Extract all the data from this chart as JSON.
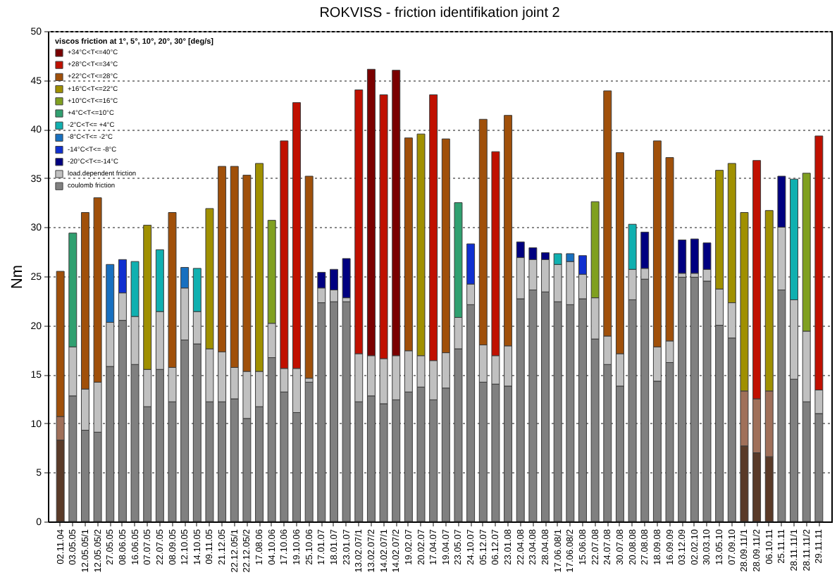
{
  "chart_data": {
    "type": "bar",
    "title": "ROKVISS - friction identifikation joint 2",
    "ylabel": "Nm",
    "legend_title": "viscos friction at 1°, 5°, 10°, 20°, 30° [deg/s]",
    "categories": [
      "02.11.04",
      "03.05.05",
      "12.05.05/1",
      "12.05.05/2",
      "27.05.05",
      "08.06.05",
      "16.06.05",
      "07.07.05",
      "22.07.05",
      "08.09.05",
      "12.10.05",
      "14.10.05",
      "09.11.05",
      "21.12.05",
      "22.12.05/1",
      "22.12.05/2",
      "17.08.06",
      "04.10.06",
      "17.10.06",
      "19.10.06",
      "25.10.06",
      "17.01.07",
      "18.01.07",
      "23.01.07",
      "13.02.07/1",
      "13.02.07/2",
      "14.02.07/1",
      "14.02.07/2",
      "19.02.07",
      "20.02.07",
      "17.04.07",
      "19.04.07",
      "23.05.07",
      "24.10.07",
      "05.12.07",
      "06.12.07",
      "23.01.08",
      "22.04.08",
      "23.04.08",
      "28.04.08",
      "17.06.08/1",
      "17.06.08/2",
      "15.06.08",
      "22.07.08",
      "24.07.08",
      "30.07.08",
      "20.08.08",
      "27.08.08",
      "18.09.08",
      "16.09.09",
      "03.12.09",
      "02.02.10",
      "30.03.10",
      "13.05.10",
      "07.09.10",
      "28.09.11/1",
      "28.09.11/2",
      "06.10.11",
      "25.11.11",
      "28.11.11/1",
      "28.11.11/2",
      "29.11.11"
    ],
    "stacked": true,
    "series": [
      {
        "name": "coulomb friction",
        "color": "#808080",
        "colors": [
          "#5a3a28",
          "#808080",
          "#808080",
          "#808080",
          "#808080",
          "#808080",
          "#808080",
          "#808080",
          "#808080",
          "#808080",
          "#808080",
          "#808080",
          "#808080",
          "#808080",
          "#808080",
          "#808080",
          "#808080",
          "#808080",
          "#808080",
          "#808080",
          "#808080",
          "#808080",
          "#808080",
          "#808080",
          "#808080",
          "#808080",
          "#808080",
          "#808080",
          "#808080",
          "#808080",
          "#808080",
          "#808080",
          "#808080",
          "#808080",
          "#808080",
          "#808080",
          "#808080",
          "#808080",
          "#808080",
          "#808080",
          "#808080",
          "#808080",
          "#808080",
          "#808080",
          "#808080",
          "#808080",
          "#808080",
          "#808080",
          "#808080",
          "#808080",
          "#808080",
          "#808080",
          "#808080",
          "#808080",
          "#808080",
          "#5a3a28",
          "#5a3a28",
          "#5a3a28",
          "#808080",
          "#808080",
          "#808080",
          "#808080"
        ],
        "values": [
          8.3,
          12.8,
          9.3,
          9.1,
          15.8,
          20.5,
          16.0,
          11.7,
          15.5,
          12.2,
          18.5,
          18.1,
          12.2,
          12.2,
          12.5,
          10.5,
          11.7,
          16.7,
          13.2,
          11.1,
          14.2,
          22.3,
          22.4,
          22.4,
          12.2,
          12.8,
          12.0,
          12.4,
          13.2,
          13.7,
          12.4,
          13.6,
          17.6,
          22.1,
          14.2,
          14.0,
          13.8,
          22.7,
          23.6,
          23.4,
          22.4,
          22.1,
          22.7,
          18.6,
          16.0,
          13.8,
          22.6,
          24.7,
          14.3,
          16.2,
          24.9,
          24.9,
          24.5,
          20.0,
          18.7,
          7.7,
          7.0,
          6.6,
          23.6,
          14.5,
          12.2,
          11.0
        ]
      },
      {
        "name": "load.dependent friction",
        "color": "#c0c0c0",
        "colors": [
          "#a0705a",
          "#c0c0c0",
          "#c0c0c0",
          "#c0c0c0",
          "#c0c0c0",
          "#c0c0c0",
          "#c0c0c0",
          "#c0c0c0",
          "#c0c0c0",
          "#c0c0c0",
          "#c0c0c0",
          "#c0c0c0",
          "#c0c0c0",
          "#c0c0c0",
          "#c0c0c0",
          "#c0c0c0",
          "#c0c0c0",
          "#c0c0c0",
          "#c0c0c0",
          "#c0c0c0",
          "#c0c0c0",
          "#c0c0c0",
          "#c0c0c0",
          "#c0c0c0",
          "#c0c0c0",
          "#c0c0c0",
          "#c0c0c0",
          "#c0c0c0",
          "#c0c0c0",
          "#c0c0c0",
          "#c0c0c0",
          "#c0c0c0",
          "#c0c0c0",
          "#c0c0c0",
          "#c0c0c0",
          "#c0c0c0",
          "#c0c0c0",
          "#c0c0c0",
          "#c0c0c0",
          "#c0c0c0",
          "#c0c0c0",
          "#c0c0c0",
          "#c0c0c0",
          "#c0c0c0",
          "#c0c0c0",
          "#c0c0c0",
          "#c0c0c0",
          "#c0c0c0",
          "#c0c0c0",
          "#c0c0c0",
          "#c0c0c0",
          "#c0c0c0",
          "#c0c0c0",
          "#c0c0c0",
          "#c0c0c0",
          "#a0705a",
          "#a0705a",
          "#a0705a",
          "#c0c0c0",
          "#c0c0c0",
          "#c0c0c0",
          "#c0c0c0"
        ],
        "values": [
          2.4,
          5.0,
          4.2,
          5.1,
          4.5,
          2.8,
          4.9,
          3.8,
          5.9,
          3.5,
          5.3,
          3.3,
          5.4,
          5.1,
          3.2,
          4.8,
          3.6,
          3.5,
          2.4,
          4.5,
          0.4,
          1.5,
          1.2,
          0.4,
          4.9,
          4.1,
          4.6,
          4.5,
          4.2,
          3.2,
          4.0,
          3.6,
          3.2,
          2.1,
          3.8,
          2.9,
          4.1,
          4.2,
          3.1,
          3.3,
          3.8,
          4.4,
          2.5,
          4.2,
          2.9,
          3.3,
          3.1,
          1.1,
          3.5,
          2.2,
          0.4,
          0.4,
          1.2,
          3.7,
          3.6,
          5.6,
          5.5,
          6.7,
          6.4,
          8.1,
          7.2,
          2.4
        ]
      },
      {
        "name": "+34°C<T<=40°C",
        "color": "#7a0000",
        "values": [
          null,
          null,
          null,
          null,
          null,
          null,
          null,
          null,
          null,
          null,
          null,
          null,
          null,
          null,
          null,
          null,
          null,
          null,
          null,
          null,
          null,
          null,
          null,
          null,
          null,
          29.2,
          null,
          29.1,
          null,
          null,
          null,
          null,
          null,
          null,
          null,
          null,
          null,
          null,
          null,
          null,
          null,
          null,
          null,
          null,
          null,
          null,
          null,
          null,
          null,
          null,
          null,
          null,
          null,
          null,
          null,
          null,
          null,
          null,
          null,
          null,
          null,
          null
        ]
      },
      {
        "name": "+28°C<T<=34°C",
        "color": "#c01000",
        "values": [
          null,
          null,
          null,
          null,
          null,
          null,
          null,
          null,
          null,
          null,
          null,
          null,
          null,
          null,
          null,
          null,
          null,
          null,
          23.2,
          27.1,
          null,
          null,
          null,
          null,
          26.9,
          null,
          26.9,
          null,
          null,
          null,
          27.1,
          null,
          null,
          null,
          null,
          20.8,
          null,
          null,
          null,
          null,
          null,
          null,
          null,
          null,
          null,
          null,
          null,
          null,
          null,
          null,
          null,
          null,
          null,
          null,
          null,
          null,
          24.3,
          null,
          null,
          null,
          null,
          25.9
        ]
      },
      {
        "name": "+22°C<T<=28°C",
        "color": "#a0500a",
        "values": [
          14.8,
          null,
          18.0,
          18.8,
          null,
          null,
          null,
          null,
          null,
          15.8,
          null,
          null,
          null,
          18.9,
          20.5,
          20.0,
          null,
          null,
          null,
          null,
          20.6,
          null,
          null,
          null,
          null,
          null,
          null,
          null,
          21.7,
          null,
          null,
          21.8,
          null,
          null,
          23.0,
          null,
          23.5,
          null,
          null,
          null,
          null,
          null,
          null,
          null,
          25.0,
          20.5,
          null,
          null,
          21.0,
          18.7,
          null,
          null,
          null,
          null,
          null,
          null,
          null,
          null,
          null,
          null,
          null,
          null
        ]
      },
      {
        "name": "+16°C<T<=22°C",
        "color": "#a09000",
        "values": [
          null,
          null,
          null,
          null,
          null,
          null,
          null,
          14.7,
          null,
          null,
          null,
          null,
          14.3,
          null,
          null,
          null,
          21.2,
          null,
          null,
          null,
          null,
          null,
          null,
          null,
          null,
          null,
          null,
          null,
          null,
          22.6,
          null,
          null,
          null,
          null,
          null,
          null,
          null,
          null,
          null,
          null,
          null,
          null,
          null,
          null,
          null,
          null,
          null,
          null,
          null,
          null,
          null,
          null,
          null,
          12.1,
          14.2,
          18.2,
          null,
          18.4,
          null,
          null,
          null,
          null
        ]
      },
      {
        "name": "+10°C<T<=16°C",
        "color": "#80a020",
        "values": [
          null,
          null,
          null,
          null,
          null,
          null,
          null,
          null,
          null,
          null,
          null,
          null,
          null,
          null,
          null,
          null,
          null,
          10.5,
          null,
          null,
          null,
          null,
          null,
          null,
          null,
          null,
          null,
          null,
          null,
          null,
          null,
          null,
          null,
          null,
          null,
          null,
          null,
          null,
          null,
          null,
          null,
          null,
          null,
          9.8,
          null,
          null,
          null,
          null,
          null,
          null,
          null,
          null,
          null,
          null,
          null,
          null,
          null,
          null,
          null,
          null,
          16.1,
          null
        ]
      },
      {
        "name": "+4°C<T<=10°C",
        "color": "#30a070",
        "values": [
          null,
          11.6,
          null,
          null,
          null,
          null,
          null,
          null,
          null,
          null,
          null,
          null,
          null,
          null,
          null,
          null,
          null,
          null,
          null,
          null,
          null,
          null,
          null,
          null,
          null,
          null,
          null,
          null,
          null,
          null,
          null,
          null,
          11.7,
          null,
          null,
          null,
          null,
          null,
          null,
          null,
          null,
          null,
          null,
          null,
          null,
          null,
          null,
          null,
          null,
          null,
          null,
          null,
          null,
          null,
          null,
          null,
          null,
          null,
          null,
          null,
          null,
          null
        ]
      },
      {
        "name": "-2°C<T<= +4°C",
        "color": "#10b0b0",
        "values": [
          null,
          null,
          null,
          null,
          null,
          null,
          5.6,
          null,
          6.3,
          null,
          null,
          4.4,
          null,
          null,
          null,
          null,
          null,
          null,
          null,
          null,
          null,
          null,
          null,
          null,
          null,
          null,
          null,
          null,
          null,
          null,
          null,
          null,
          null,
          null,
          null,
          null,
          null,
          null,
          null,
          null,
          1.1,
          null,
          null,
          null,
          null,
          null,
          4.6,
          null,
          null,
          null,
          null,
          null,
          null,
          null,
          null,
          null,
          null,
          null,
          null,
          12.3,
          null,
          null
        ]
      },
      {
        "name": "-8°C<T<= -2°C",
        "color": "#1870c0",
        "values": [
          null,
          null,
          null,
          null,
          5.9,
          null,
          null,
          null,
          null,
          null,
          2.1,
          null,
          null,
          null,
          null,
          null,
          null,
          null,
          null,
          null,
          null,
          null,
          null,
          null,
          null,
          null,
          null,
          null,
          null,
          null,
          null,
          null,
          null,
          null,
          null,
          null,
          null,
          null,
          null,
          null,
          null,
          0.8,
          null,
          null,
          null,
          null,
          null,
          null,
          null,
          null,
          null,
          null,
          null,
          null,
          null,
          null,
          null,
          null,
          null,
          null,
          null,
          null
        ]
      },
      {
        "name": "-14°C<T<= -8°C",
        "color": "#1030d0",
        "values": [
          null,
          null,
          null,
          null,
          null,
          3.4,
          null,
          null,
          null,
          null,
          null,
          null,
          null,
          null,
          null,
          null,
          null,
          null,
          null,
          null,
          null,
          null,
          null,
          null,
          null,
          null,
          null,
          null,
          null,
          null,
          null,
          null,
          null,
          4.1,
          null,
          null,
          null,
          null,
          null,
          null,
          null,
          null,
          1.9,
          null,
          null,
          null,
          null,
          null,
          null,
          null,
          null,
          null,
          null,
          null,
          null,
          null,
          null,
          null,
          null,
          null,
          null,
          null
        ]
      },
      {
        "name": "-20°C<T<=-14°C",
        "color": "#000080",
        "values": [
          null,
          null,
          null,
          null,
          null,
          null,
          null,
          null,
          null,
          null,
          null,
          null,
          null,
          null,
          null,
          null,
          null,
          null,
          null,
          null,
          null,
          1.6,
          2.1,
          4.0,
          null,
          null,
          null,
          null,
          null,
          null,
          null,
          null,
          null,
          null,
          null,
          null,
          null,
          1.6,
          1.2,
          0.7,
          null,
          null,
          null,
          null,
          null,
          null,
          null,
          3.7,
          null,
          null,
          3.4,
          3.5,
          2.7,
          null,
          null,
          null,
          null,
          null,
          5.2,
          null,
          null,
          null
        ]
      }
    ],
    "ylim": [
      0,
      50
    ],
    "yticks": [
      0,
      5,
      10,
      15,
      20,
      25,
      30,
      35,
      40,
      45,
      50
    ],
    "grid": "y",
    "legend": "top left"
  }
}
